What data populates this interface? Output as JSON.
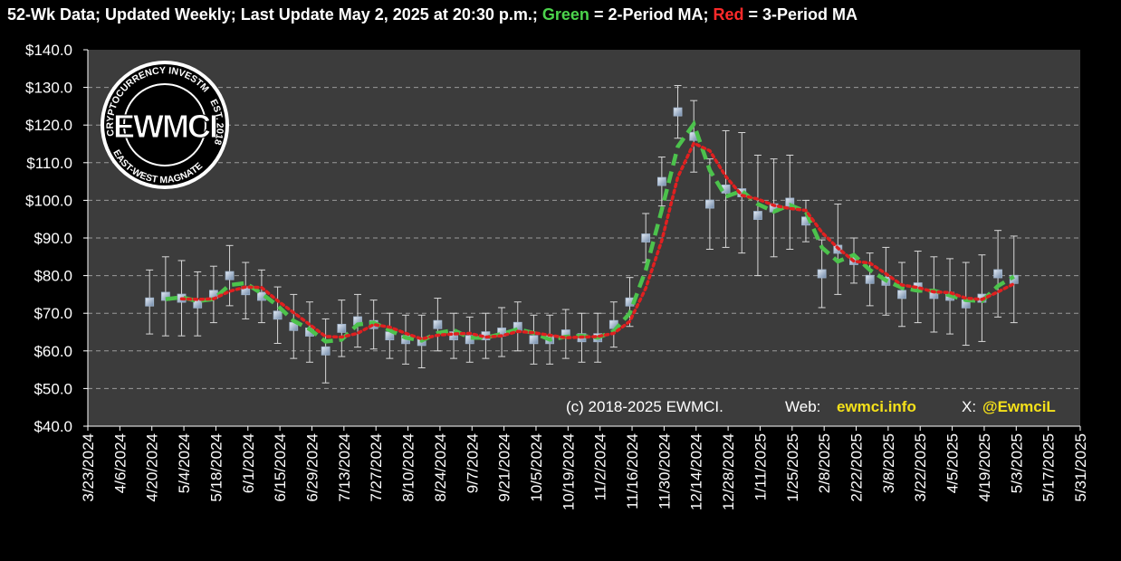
{
  "chart_data": {
    "type": "line",
    "title_parts": [
      "52-Wk Data; Updated Weekly; Last Update May 2, 2025 at 20:30 p.m.;",
      "Green",
      "= 2-Period MA;",
      "Red",
      "= 3-Period MA"
    ],
    "logo": {
      "name": "EWMCI",
      "top": "CRYPTOCURRENCY INVESTMENTS",
      "right": "EST. 2018",
      "bottom": "EAST-WEST MAGNATE"
    },
    "annotations": {
      "copyright": "(c) 2018-2025 EWMCI.",
      "web_label": "Web:",
      "web": "ewmci.info",
      "x_label": "X:",
      "x_handle": "@EwmciL"
    },
    "x": [
      "2024-04-19",
      "2024-04-26",
      "2024-05-03",
      "2024-05-10",
      "2024-05-17",
      "2024-05-24",
      "2024-05-31",
      "2024-06-07",
      "2024-06-14",
      "2024-06-21",
      "2024-06-28",
      "2024-07-05",
      "2024-07-12",
      "2024-07-19",
      "2024-07-26",
      "2024-08-02",
      "2024-08-09",
      "2024-08-16",
      "2024-08-23",
      "2024-08-30",
      "2024-09-06",
      "2024-09-13",
      "2024-09-20",
      "2024-09-27",
      "2024-10-04",
      "2024-10-11",
      "2024-10-18",
      "2024-10-25",
      "2024-11-01",
      "2024-11-08",
      "2024-11-15",
      "2024-11-22",
      "2024-11-29",
      "2024-12-06",
      "2024-12-13",
      "2024-12-20",
      "2024-12-27",
      "2025-01-03",
      "2025-01-10",
      "2025-01-17",
      "2025-01-24",
      "2025-01-31",
      "2025-02-07",
      "2025-02-14",
      "2025-02-21",
      "2025-02-28",
      "2025-03-07",
      "2025-03-14",
      "2025-03-21",
      "2025-03-28",
      "2025-04-04",
      "2025-04-11",
      "2025-04-18",
      "2025-04-25",
      "2025-05-02"
    ],
    "series": [
      {
        "color": "#9fb4cc",
        "values": [
          73,
          74.5,
          74,
          72.5,
          75,
          80,
          76,
          74.5,
          69.5,
          66.5,
          65,
          60,
          66,
          68,
          67,
          64,
          63,
          62.5,
          67,
          64,
          63,
          64,
          65,
          66.5,
          63,
          63,
          64.5,
          63.5,
          63.5,
          67,
          73,
          90,
          105,
          123.5,
          117,
          99,
          103,
          102,
          96,
          98,
          99.5,
          94.5,
          80.5,
          87,
          84,
          79,
          78.5,
          75,
          77,
          75,
          74.5,
          72.5,
          74,
          80.5,
          79
        ],
        "errors": [
          8.5,
          10.5,
          10,
          8.5,
          7.5,
          8,
          7.5,
          7,
          7.5,
          8.5,
          8,
          8.5,
          7.5,
          7,
          6.5,
          6,
          6.5,
          7,
          7,
          6,
          6,
          6,
          6.5,
          6.5,
          6.5,
          6.5,
          6.5,
          6.5,
          6.5,
          6,
          6.5,
          6.5,
          6.5,
          7,
          9.5,
          12,
          15.5,
          16,
          16,
          13,
          12.5,
          5.5,
          9,
          12,
          6,
          7,
          9,
          8.5,
          9.5,
          10,
          10,
          11,
          11.5,
          11.5,
          11.5
        ]
      },
      {
        "color": "#4cc24c",
        "values": [
          null,
          73.75,
          74.25,
          73.25,
          73.75,
          77.5,
          78,
          75.25,
          72,
          68,
          65.75,
          62.5,
          63,
          67,
          67.5,
          65.5,
          63.5,
          62.75,
          64.75,
          65.5,
          63.5,
          63.5,
          64.5,
          65.75,
          64.75,
          63,
          63.75,
          64,
          63.5,
          65.25,
          70,
          81.5,
          97.5,
          114.25,
          120.25,
          108,
          101,
          102.5,
          99,
          97,
          98.75,
          97,
          87.5,
          83.75,
          85.5,
          81.5,
          78.75,
          76.75,
          76,
          76,
          74.75,
          73.5,
          73.25,
          77.25,
          79.75
        ]
      },
      {
        "color": "#e02020",
        "values": [
          null,
          null,
          73.83,
          73.67,
          73.83,
          75.83,
          77,
          76.83,
          73.33,
          70.17,
          67,
          63.83,
          63.67,
          64.67,
          67,
          66.33,
          64.67,
          63.17,
          64.17,
          64.5,
          64.67,
          63.67,
          64,
          65.17,
          64.83,
          64.17,
          63.5,
          63.67,
          63.83,
          64.67,
          67.83,
          76.67,
          89.33,
          106.17,
          115.17,
          113.17,
          106.33,
          101.33,
          100.33,
          98.67,
          97.83,
          97.33,
          91.5,
          87.33,
          83.83,
          83.33,
          80.5,
          77.5,
          76.83,
          75.67,
          75.5,
          74,
          73.67,
          75.67,
          77.83
        ]
      }
    ],
    "xlim": [
      "2024-03-23",
      "2025-05-31"
    ],
    "xticks": [
      {
        "value": "2024-03-23",
        "label": "3/23/2024"
      },
      {
        "value": "2024-04-06",
        "label": "4/6/2024"
      },
      {
        "value": "2024-04-20",
        "label": "4/20/2024"
      },
      {
        "value": "2024-05-04",
        "label": "5/4/2024"
      },
      {
        "value": "2024-05-18",
        "label": "5/18/2024"
      },
      {
        "value": "2024-06-01",
        "label": "6/1/2024"
      },
      {
        "value": "2024-06-15",
        "label": "6/15/2024"
      },
      {
        "value": "2024-06-29",
        "label": "6/29/2024"
      },
      {
        "value": "2024-07-13",
        "label": "7/13/2024"
      },
      {
        "value": "2024-07-27",
        "label": "7/27/2024"
      },
      {
        "value": "2024-08-10",
        "label": "8/10/2024"
      },
      {
        "value": "2024-08-24",
        "label": "8/24/2024"
      },
      {
        "value": "2024-09-07",
        "label": "9/7/2024"
      },
      {
        "value": "2024-09-21",
        "label": "9/21/2024"
      },
      {
        "value": "2024-10-05",
        "label": "10/5/2024"
      },
      {
        "value": "2024-10-19",
        "label": "10/19/2024"
      },
      {
        "value": "2024-11-02",
        "label": "11/2/2024"
      },
      {
        "value": "2024-11-16",
        "label": "11/16/2024"
      },
      {
        "value": "2024-11-30",
        "label": "11/30/2024"
      },
      {
        "value": "2024-12-14",
        "label": "12/14/2024"
      },
      {
        "value": "2024-12-28",
        "label": "12/28/2024"
      },
      {
        "value": "2025-01-11",
        "label": "1/11/2025"
      },
      {
        "value": "2025-01-25",
        "label": "1/25/2025"
      },
      {
        "value": "2025-02-08",
        "label": "2/8/2025"
      },
      {
        "value": "2025-02-22",
        "label": "2/22/2025"
      },
      {
        "value": "2025-03-08",
        "label": "3/8/2025"
      },
      {
        "value": "2025-03-22",
        "label": "3/22/2025"
      },
      {
        "value": "2025-04-05",
        "label": "4/5/2025"
      },
      {
        "value": "2025-04-19",
        "label": "4/19/2025"
      },
      {
        "value": "2025-05-03",
        "label": "5/3/2025"
      },
      {
        "value": "2025-05-17",
        "label": "5/17/2025"
      },
      {
        "value": "2025-05-31",
        "label": "5/31/2025"
      }
    ],
    "ylim": [
      40,
      140
    ],
    "yticks": [
      {
        "value": 40,
        "label": "$40.0"
      },
      {
        "value": 50,
        "label": "$50.0"
      },
      {
        "value": 60,
        "label": "$60.0"
      },
      {
        "value": 70,
        "label": "$70.0"
      },
      {
        "value": 80,
        "label": "$80.0"
      },
      {
        "value": 90,
        "label": "$90.0"
      },
      {
        "value": 100,
        "label": "$100.0"
      },
      {
        "value": 110,
        "label": "$110.0"
      },
      {
        "value": 120,
        "label": "$120.0"
      },
      {
        "value": 130,
        "label": "$130.0"
      },
      {
        "value": 140,
        "label": "$140.0"
      }
    ],
    "grid": true
  }
}
